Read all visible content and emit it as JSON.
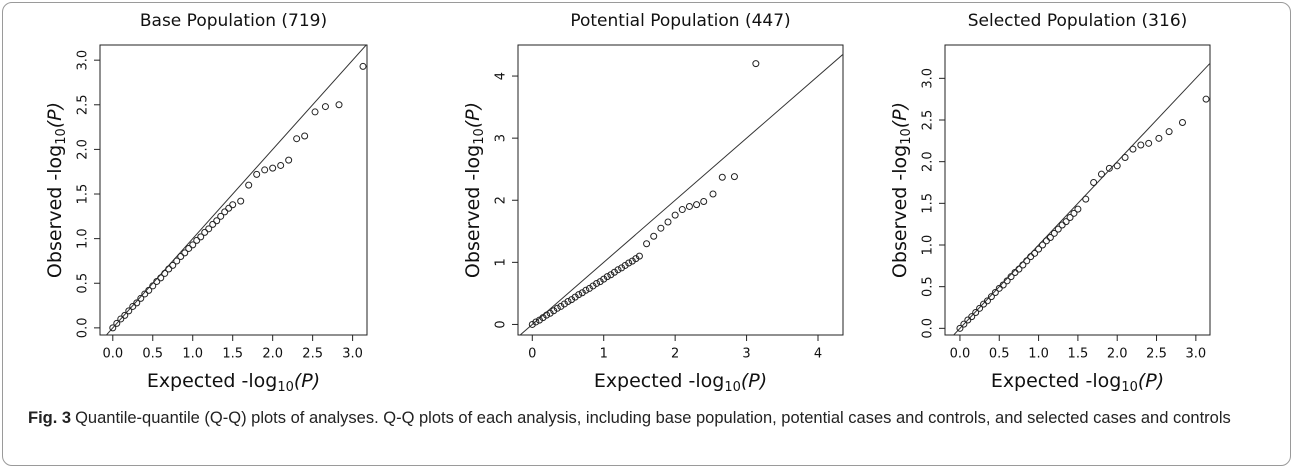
{
  "chart_data": [
    {
      "type": "scatter",
      "title": "Base Population (719)",
      "xlabel": {
        "text": "Expected -log",
        "sub": "10",
        "arg": "(P)"
      },
      "ylabel": {
        "text": "Observed -log",
        "sub": "10",
        "arg": "(P)"
      },
      "x": [
        0,
        0.05,
        0.1,
        0.15,
        0.2,
        0.25,
        0.3,
        0.35,
        0.4,
        0.45,
        0.5,
        0.55,
        0.6,
        0.65,
        0.7,
        0.75,
        0.8,
        0.85,
        0.9,
        0.95,
        1.0,
        1.05,
        1.1,
        1.15,
        1.2,
        1.25,
        1.3,
        1.35,
        1.4,
        1.45,
        1.5,
        1.6,
        1.7,
        1.8,
        1.9,
        2.0,
        2.1,
        2.2,
        2.3,
        2.4,
        2.53,
        2.66,
        2.83,
        3.13
      ],
      "y": [
        0,
        0.05,
        0.1,
        0.14,
        0.19,
        0.24,
        0.28,
        0.33,
        0.38,
        0.42,
        0.47,
        0.52,
        0.56,
        0.61,
        0.66,
        0.7,
        0.75,
        0.8,
        0.84,
        0.89,
        0.93,
        0.98,
        1.02,
        1.07,
        1.11,
        1.16,
        1.2,
        1.25,
        1.3,
        1.34,
        1.38,
        1.42,
        1.6,
        1.72,
        1.77,
        1.79,
        1.82,
        1.88,
        2.12,
        2.15,
        2.42,
        2.48,
        2.5,
        2.93
      ],
      "color": "#222222",
      "xlim": [
        -0.16,
        3.18
      ],
      "ylim": [
        -0.08,
        3.17
      ],
      "xticks": [
        {
          "value": 0,
          "label": "0.0"
        },
        0.5,
        {
          "value": 1,
          "label": "1.0"
        },
        1.5,
        {
          "value": 2,
          "label": "2.0"
        },
        2.5,
        {
          "value": 3,
          "label": "3.0"
        }
      ],
      "yticks": [
        {
          "value": 0,
          "label": "0.0"
        },
        0.5,
        {
          "value": 1,
          "label": "1.0"
        },
        1.5,
        {
          "value": 2,
          "label": "2.0"
        },
        2.5,
        {
          "value": 3,
          "label": "3.0"
        }
      ]
    },
    {
      "type": "scatter",
      "title": "Potential Population (447)",
      "xlabel": {
        "text": "Expected -log",
        "sub": "10",
        "arg": "(P)"
      },
      "ylabel": {
        "text": "Observed -log",
        "sub": "10",
        "arg": "(P)"
      },
      "x": [
        0,
        0.05,
        0.1,
        0.15,
        0.2,
        0.25,
        0.3,
        0.35,
        0.4,
        0.45,
        0.5,
        0.55,
        0.6,
        0.65,
        0.7,
        0.75,
        0.8,
        0.85,
        0.9,
        0.95,
        1.0,
        1.05,
        1.1,
        1.15,
        1.2,
        1.25,
        1.3,
        1.35,
        1.4,
        1.45,
        1.5,
        1.6,
        1.7,
        1.8,
        1.9,
        2.0,
        2.1,
        2.2,
        2.3,
        2.4,
        2.53,
        2.66,
        2.83,
        3.13
      ],
      "y": [
        0,
        0.04,
        0.07,
        0.11,
        0.15,
        0.18,
        0.22,
        0.26,
        0.29,
        0.33,
        0.37,
        0.4,
        0.44,
        0.48,
        0.51,
        0.55,
        0.58,
        0.62,
        0.66,
        0.69,
        0.73,
        0.77,
        0.8,
        0.84,
        0.88,
        0.91,
        0.95,
        0.99,
        1.02,
        1.06,
        1.1,
        1.3,
        1.42,
        1.55,
        1.65,
        1.76,
        1.85,
        1.9,
        1.93,
        1.98,
        2.1,
        2.37,
        2.38,
        4.2
      ],
      "color": "#222222",
      "xlim": [
        -0.2,
        4.35
      ],
      "ylim": [
        -0.17,
        4.5
      ],
      "xticks": [
        0,
        1,
        2,
        3,
        4
      ],
      "yticks": [
        0,
        1,
        2,
        3,
        4
      ]
    },
    {
      "type": "scatter",
      "title": "Selected Population (316)",
      "xlabel": {
        "text": "Expected -log",
        "sub": "10",
        "arg": "(P)"
      },
      "ylabel": {
        "text": "Observed -log",
        "sub": "10",
        "arg": "(P)"
      },
      "x": [
        0,
        0.05,
        0.1,
        0.15,
        0.2,
        0.25,
        0.3,
        0.35,
        0.4,
        0.45,
        0.5,
        0.55,
        0.6,
        0.65,
        0.7,
        0.75,
        0.8,
        0.85,
        0.9,
        0.95,
        1.0,
        1.05,
        1.1,
        1.15,
        1.2,
        1.25,
        1.3,
        1.35,
        1.4,
        1.45,
        1.5,
        1.6,
        1.7,
        1.8,
        1.9,
        2.0,
        2.1,
        2.2,
        2.3,
        2.4,
        2.53,
        2.66,
        2.83,
        3.13
      ],
      "y": [
        0,
        0.05,
        0.1,
        0.14,
        0.19,
        0.24,
        0.29,
        0.33,
        0.38,
        0.43,
        0.48,
        0.52,
        0.57,
        0.62,
        0.67,
        0.71,
        0.76,
        0.81,
        0.86,
        0.9,
        0.95,
        1.0,
        1.05,
        1.09,
        1.14,
        1.19,
        1.24,
        1.28,
        1.33,
        1.38,
        1.43,
        1.55,
        1.75,
        1.85,
        1.92,
        1.95,
        2.05,
        2.15,
        2.2,
        2.22,
        2.28,
        2.36,
        2.47,
        2.75
      ],
      "color": "#222222",
      "xlim": [
        -0.19,
        3.18
      ],
      "ylim": [
        -0.08,
        3.4
      ],
      "xticks": [
        {
          "value": 0,
          "label": "0.0"
        },
        0.5,
        {
          "value": 1,
          "label": "1.0"
        },
        1.5,
        {
          "value": 2,
          "label": "2.0"
        },
        2.5,
        {
          "value": 3,
          "label": "3.0"
        }
      ],
      "yticks": [
        {
          "value": 0,
          "label": "0.0"
        },
        0.5,
        {
          "value": 1,
          "label": "1.0"
        },
        1.5,
        {
          "value": 2,
          "label": "2.0"
        },
        2.5,
        {
          "value": 3,
          "label": "3.0"
        }
      ]
    }
  ],
  "caption": {
    "label": "Fig. 3",
    "text": "Quantile-quantile (Q-Q) plots of analyses. Q-Q plots of each analysis, including base population, potential cases and controls, and selected cases and controls"
  }
}
